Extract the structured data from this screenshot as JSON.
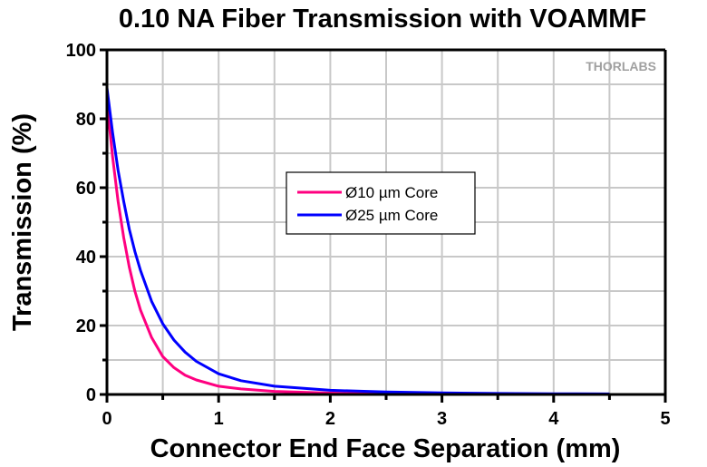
{
  "chart_data": {
    "type": "line",
    "title": "0.10 NA Fiber Transmission with VOAMMF",
    "xlabel": "Connector End Face Separation (mm)",
    "ylabel": "Transmission (%)",
    "xlim": [
      0,
      5
    ],
    "ylim": [
      0,
      100
    ],
    "xticks": [
      "0",
      "1",
      "2",
      "3",
      "4",
      "5"
    ],
    "yticks": [
      "0",
      "20",
      "40",
      "60",
      "80",
      "100"
    ],
    "grid": true,
    "legend_position": "center",
    "watermark": "THORLABS",
    "series": [
      {
        "name": "Ø10 µm Core",
        "color": "#ff0080",
        "x": [
          0,
          0.05,
          0.1,
          0.15,
          0.2,
          0.25,
          0.3,
          0.4,
          0.5,
          0.6,
          0.7,
          0.8,
          1.0,
          1.2,
          1.5,
          2.0,
          2.5,
          3.07
        ],
        "y": [
          85,
          69,
          56,
          45.5,
          37,
          30,
          24.5,
          16.5,
          11,
          7.8,
          5.6,
          4.2,
          2.4,
          1.6,
          0.9,
          0.4,
          0.2,
          0.1
        ]
      },
      {
        "name": "Ø25 µm Core",
        "color": "#0000ff",
        "x": [
          0,
          0.05,
          0.1,
          0.15,
          0.2,
          0.25,
          0.3,
          0.4,
          0.5,
          0.6,
          0.7,
          0.8,
          1.0,
          1.2,
          1.5,
          2.0,
          2.5,
          3.0,
          3.5,
          4.0,
          4.5
        ],
        "y": [
          89,
          76,
          65,
          56,
          48,
          41.5,
          36,
          27,
          20.5,
          15.8,
          12.3,
          9.6,
          6.0,
          4.0,
          2.4,
          1.2,
          0.7,
          0.45,
          0.3,
          0.2,
          0.15
        ]
      }
    ]
  }
}
